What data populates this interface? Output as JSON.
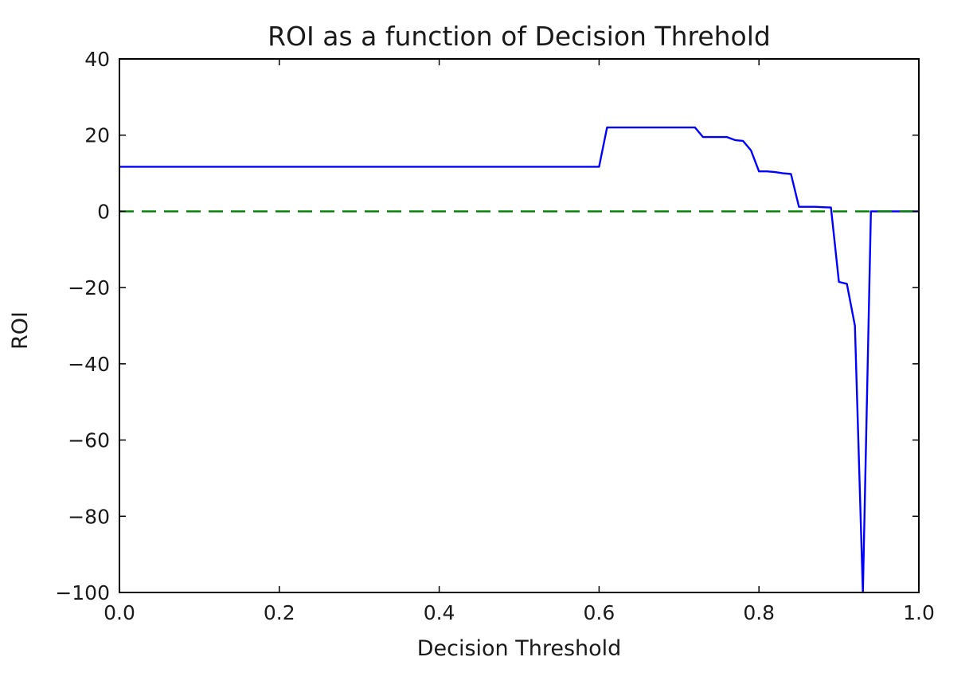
{
  "chart_data": {
    "type": "line",
    "title": "ROI as a function of Decision Threhold",
    "xlabel": "Decision Threshold",
    "ylabel": "ROI",
    "xlim": [
      0.0,
      1.0
    ],
    "ylim": [
      -100,
      40
    ],
    "xticks": [
      "0.0",
      "0.2",
      "0.4",
      "0.6",
      "0.8",
      "1.0"
    ],
    "yticks": [
      "40",
      "20",
      "0",
      "−20",
      "−40",
      "−60",
      "−80",
      "−100"
    ],
    "xtick_values": [
      0.0,
      0.2,
      0.4,
      0.6,
      0.8,
      1.0
    ],
    "ytick_values": [
      40,
      20,
      0,
      -20,
      -40,
      -60,
      -80,
      -100
    ],
    "grid": false,
    "series": [
      {
        "color": "#0000ff",
        "linestyle": "solid",
        "x": [
          0.0,
          0.6,
          0.61,
          0.72,
          0.73,
          0.76,
          0.77,
          0.78,
          0.79,
          0.8,
          0.81,
          0.82,
          0.83,
          0.84,
          0.85,
          0.86,
          0.87,
          0.88,
          0.89,
          0.9,
          0.91,
          0.92,
          0.93,
          0.94,
          0.95,
          1.0
        ],
        "y": [
          11.7,
          11.7,
          22.0,
          22.0,
          19.5,
          19.5,
          18.7,
          18.5,
          16.0,
          10.5,
          10.5,
          10.3,
          10.0,
          9.8,
          1.2,
          1.2,
          1.2,
          1.1,
          1.0,
          -18.5,
          -19.0,
          -30.0,
          -100,
          0.0,
          0.0,
          0.0
        ]
      },
      {
        "color": "#008000",
        "linestyle": "dashed",
        "x": [
          0.0,
          1.0
        ],
        "y": [
          0,
          0
        ]
      }
    ]
  }
}
